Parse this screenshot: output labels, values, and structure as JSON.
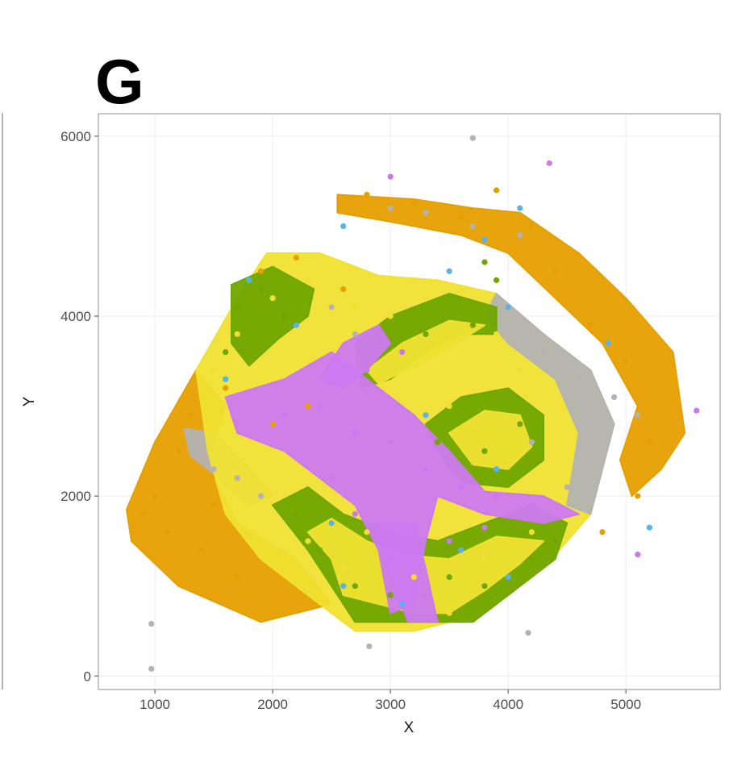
{
  "panel_letter": "G",
  "colors": {
    "orange": "#e69f00",
    "grey": "#b3b3b3",
    "purple": "#cc79f0",
    "green": "#6fa600",
    "yellow": "#f0e130",
    "blue": "#56b4e9",
    "panel_border": "#b3b3b3",
    "grid": "#ececec"
  },
  "chart_data": {
    "type": "scatter",
    "xlabel": "X",
    "ylabel": "Y",
    "xlim": [
      520,
      5800
    ],
    "ylim": [
      -150,
      6250
    ],
    "x_ticks": [
      1000,
      2000,
      3000,
      4000,
      5000
    ],
    "y_ticks": [
      0,
      2000,
      4000,
      6000
    ],
    "x_tick_labels": [
      "1000",
      "2000",
      "3000",
      "4000",
      "5000"
    ],
    "y_tick_labels": [
      "0",
      "2000",
      "4000",
      "6000"
    ],
    "grid": true,
    "legend": "none",
    "series": [
      {
        "color": "orange",
        "points": [
          [
            900,
            1800
          ],
          [
            1000,
            2000
          ],
          [
            1100,
            1600
          ],
          [
            1200,
            2500
          ],
          [
            1300,
            2900
          ],
          [
            1400,
            1400
          ],
          [
            1500,
            1900
          ],
          [
            1700,
            1100
          ],
          [
            1600,
            3200
          ],
          [
            1900,
            4500
          ],
          [
            2200,
            4650
          ],
          [
            2600,
            4300
          ],
          [
            2800,
            5350
          ],
          [
            3200,
            5250
          ],
          [
            3600,
            5100
          ],
          [
            3900,
            5400
          ],
          [
            4200,
            5000
          ],
          [
            4400,
            4500
          ],
          [
            4700,
            3900
          ],
          [
            5000,
            3500
          ],
          [
            5200,
            2600
          ],
          [
            5100,
            2000
          ],
          [
            4800,
            1600
          ],
          [
            2000,
            2800
          ],
          [
            2300,
            3000
          ]
        ]
      },
      {
        "color": "grey",
        "points": [
          [
            1300,
            2600
          ],
          [
            1500,
            2300
          ],
          [
            1700,
            2200
          ],
          [
            1900,
            2000
          ],
          [
            2500,
            4100
          ],
          [
            2700,
            3800
          ],
          [
            3000,
            5200
          ],
          [
            3300,
            5150
          ],
          [
            3700,
            5000
          ],
          [
            4100,
            4900
          ],
          [
            4300,
            3600
          ],
          [
            4600,
            3300
          ],
          [
            4900,
            3100
          ],
          [
            5100,
            2900
          ],
          [
            4500,
            2100
          ],
          [
            4200,
            2600
          ],
          [
            970,
            580
          ],
          [
            970,
            80
          ],
          [
            2820,
            330
          ],
          [
            4170,
            480
          ],
          [
            3700,
            5980
          ]
        ]
      },
      {
        "color": "purple",
        "points": [
          [
            2100,
            2900
          ],
          [
            2400,
            3000
          ],
          [
            2700,
            2700
          ],
          [
            3000,
            2600
          ],
          [
            3300,
            2300
          ],
          [
            3600,
            2100
          ],
          [
            3900,
            2000
          ],
          [
            4200,
            1900
          ],
          [
            2800,
            3400
          ],
          [
            3100,
            3600
          ],
          [
            2500,
            2200
          ],
          [
            2700,
            1800
          ],
          [
            3000,
            1300
          ],
          [
            3300,
            900
          ],
          [
            3500,
            1500
          ],
          [
            3800,
            1650
          ],
          [
            4350,
            5700
          ],
          [
            5600,
            2950
          ],
          [
            5100,
            1350
          ],
          [
            3000,
            5550
          ]
        ]
      },
      {
        "color": "green",
        "points": [
          [
            1700,
            4100
          ],
          [
            1900,
            4300
          ],
          [
            2100,
            4000
          ],
          [
            1600,
            3600
          ],
          [
            2200,
            1800
          ],
          [
            2400,
            1400
          ],
          [
            2700,
            1000
          ],
          [
            3000,
            900
          ],
          [
            3500,
            1100
          ],
          [
            3800,
            1000
          ],
          [
            4200,
            1300
          ],
          [
            4400,
            1500
          ],
          [
            3400,
            2600
          ],
          [
            3800,
            2500
          ],
          [
            4100,
            2800
          ],
          [
            3300,
            3800
          ],
          [
            3700,
            3900
          ],
          [
            3900,
            4400
          ],
          [
            3800,
            4600
          ]
        ]
      },
      {
        "color": "yellow",
        "points": [
          [
            1500,
            3400
          ],
          [
            1700,
            3800
          ],
          [
            2000,
            4200
          ],
          [
            2300,
            4400
          ],
          [
            2700,
            4100
          ],
          [
            3000,
            4000
          ],
          [
            3300,
            4200
          ],
          [
            3600,
            4300
          ],
          [
            3900,
            3800
          ],
          [
            4100,
            3400
          ],
          [
            3500,
            3000
          ],
          [
            3700,
            2800
          ],
          [
            4000,
            2400
          ],
          [
            2300,
            1500
          ],
          [
            2600,
            1200
          ],
          [
            2800,
            1600
          ],
          [
            3200,
            1100
          ],
          [
            3500,
            700
          ],
          [
            3800,
            1300
          ],
          [
            4200,
            1600
          ]
        ]
      },
      {
        "color": "blue",
        "points": [
          [
            1600,
            3300
          ],
          [
            1800,
            4400
          ],
          [
            2200,
            3900
          ],
          [
            2500,
            1700
          ],
          [
            2600,
            1000
          ],
          [
            3100,
            800
          ],
          [
            3600,
            1400
          ],
          [
            4000,
            1100
          ],
          [
            3300,
            2900
          ],
          [
            3900,
            2300
          ],
          [
            4000,
            4100
          ],
          [
            3500,
            4500
          ],
          [
            2600,
            5000
          ],
          [
            3800,
            4850
          ],
          [
            4850,
            3700
          ],
          [
            5200,
            1650
          ],
          [
            4100,
            5200
          ]
        ]
      }
    ],
    "regions": [
      {
        "name": "orange-left",
        "color": "orange",
        "poly": [
          [
            760,
            1850
          ],
          [
            1000,
            2600
          ],
          [
            1350,
            3400
          ],
          [
            1600,
            3000
          ],
          [
            1450,
            2350
          ],
          [
            1700,
            1700
          ],
          [
            2200,
            1300
          ],
          [
            2500,
            800
          ],
          [
            1900,
            600
          ],
          [
            1200,
            1000
          ],
          [
            800,
            1500
          ]
        ]
      },
      {
        "name": "grey-streak",
        "color": "grey",
        "poly": [
          [
            1250,
            2750
          ],
          [
            1500,
            2700
          ],
          [
            1800,
            2300
          ],
          [
            2000,
            2000
          ],
          [
            1800,
            1900
          ],
          [
            1550,
            2200
          ],
          [
            1300,
            2450
          ]
        ]
      },
      {
        "name": "top-band",
        "color": "orange",
        "poly": [
          [
            2550,
            5350
          ],
          [
            3200,
            5300
          ],
          [
            3700,
            5200
          ],
          [
            4100,
            5150
          ],
          [
            4600,
            4700
          ],
          [
            5000,
            4200
          ],
          [
            5400,
            3600
          ],
          [
            5500,
            2700
          ],
          [
            5300,
            2300
          ],
          [
            5050,
            2000
          ],
          [
            4950,
            2400
          ],
          [
            5100,
            3000
          ],
          [
            4800,
            3700
          ],
          [
            4400,
            4200
          ],
          [
            4000,
            4700
          ],
          [
            3600,
            4900
          ],
          [
            3000,
            5050
          ],
          [
            2550,
            5150
          ]
        ]
      },
      {
        "name": "cortex-main",
        "color": "yellow",
        "poly": [
          [
            1350,
            3400
          ],
          [
            1700,
            4200
          ],
          [
            1950,
            4700
          ],
          [
            2400,
            4700
          ],
          [
            2900,
            4450
          ],
          [
            3400,
            4400
          ],
          [
            3900,
            4250
          ],
          [
            4300,
            3800
          ],
          [
            4700,
            3400
          ],
          [
            4900,
            2800
          ],
          [
            4700,
            1800
          ],
          [
            4300,
            1200
          ],
          [
            3800,
            700
          ],
          [
            3200,
            500
          ],
          [
            2700,
            500
          ],
          [
            2300,
            900
          ],
          [
            1900,
            1300
          ],
          [
            1600,
            1800
          ],
          [
            1450,
            2500
          ]
        ]
      },
      {
        "name": "grey-rim",
        "color": "grey",
        "poly": [
          [
            3900,
            4250
          ],
          [
            4300,
            3800
          ],
          [
            4700,
            3400
          ],
          [
            4900,
            2800
          ],
          [
            4700,
            1800
          ],
          [
            4500,
            1900
          ],
          [
            4600,
            2700
          ],
          [
            4400,
            3300
          ],
          [
            4000,
            3700
          ],
          [
            3800,
            4000
          ]
        ]
      },
      {
        "name": "green-top-left",
        "color": "green",
        "poly": [
          [
            1650,
            4350
          ],
          [
            2000,
            4550
          ],
          [
            2350,
            4300
          ],
          [
            2300,
            4000
          ],
          [
            2050,
            3750
          ],
          [
            1800,
            3450
          ],
          [
            1650,
            3700
          ]
        ]
      },
      {
        "name": "green-top-mid",
        "color": "green",
        "poly": [
          [
            2700,
            3700
          ],
          [
            3000,
            4000
          ],
          [
            3500,
            4250
          ],
          [
            3900,
            4100
          ],
          [
            3900,
            3800
          ],
          [
            3600,
            3800
          ],
          [
            3300,
            3600
          ],
          [
            3000,
            3300
          ],
          [
            2750,
            3200
          ]
        ]
      },
      {
        "name": "green-right-lobe",
        "color": "green",
        "poly": [
          [
            3300,
            2800
          ],
          [
            3600,
            3100
          ],
          [
            4000,
            3200
          ],
          [
            4300,
            2900
          ],
          [
            4300,
            2400
          ],
          [
            4000,
            2100
          ],
          [
            3600,
            2150
          ],
          [
            3400,
            2500
          ]
        ]
      },
      {
        "name": "green-lower",
        "color": "green",
        "poly": [
          [
            2000,
            1900
          ],
          [
            2300,
            1400
          ],
          [
            2500,
            1000
          ],
          [
            2700,
            600
          ],
          [
            3300,
            600
          ],
          [
            3700,
            600
          ],
          [
            4000,
            900
          ],
          [
            4400,
            1300
          ],
          [
            4500,
            1700
          ],
          [
            4200,
            1900
          ],
          [
            3800,
            1700
          ],
          [
            3400,
            1500
          ],
          [
            3000,
            1600
          ],
          [
            2600,
            1800
          ],
          [
            2300,
            2100
          ]
        ]
      },
      {
        "name": "yellow-lower-fingers",
        "color": "yellow",
        "poly": [
          [
            2300,
            1600
          ],
          [
            2500,
            1300
          ],
          [
            2600,
            900
          ],
          [
            2900,
            800
          ],
          [
            3200,
            700
          ],
          [
            3500,
            700
          ],
          [
            3800,
            950
          ],
          [
            4100,
            1250
          ],
          [
            4300,
            1500
          ],
          [
            3900,
            1550
          ],
          [
            3500,
            1300
          ],
          [
            3100,
            1350
          ],
          [
            2800,
            1500
          ],
          [
            2500,
            1750
          ]
        ]
      },
      {
        "name": "yellow-right-inner",
        "color": "yellow",
        "poly": [
          [
            3500,
            2700
          ],
          [
            3800,
            2950
          ],
          [
            4100,
            2900
          ],
          [
            4200,
            2550
          ],
          [
            4000,
            2300
          ],
          [
            3700,
            2350
          ]
        ]
      },
      {
        "name": "yellow-top-inner",
        "color": "yellow",
        "poly": [
          [
            2800,
            3400
          ],
          [
            3100,
            3700
          ],
          [
            3500,
            3950
          ],
          [
            3800,
            3900
          ],
          [
            3500,
            3650
          ],
          [
            3200,
            3450
          ],
          [
            2900,
            3250
          ]
        ]
      },
      {
        "name": "purple-core",
        "color": "purple",
        "poly": [
          [
            1600,
            3100
          ],
          [
            2100,
            3300
          ],
          [
            2500,
            3600
          ],
          [
            2800,
            3300
          ],
          [
            3200,
            2900
          ],
          [
            3500,
            2500
          ],
          [
            3800,
            2050
          ],
          [
            4300,
            2000
          ],
          [
            4600,
            1800
          ],
          [
            4300,
            1700
          ],
          [
            3800,
            1800
          ],
          [
            3400,
            2000
          ],
          [
            3300,
            1500
          ],
          [
            3200,
            800
          ],
          [
            3000,
            700
          ],
          [
            2900,
            1400
          ],
          [
            2700,
            1900
          ],
          [
            2400,
            2200
          ],
          [
            2100,
            2500
          ],
          [
            1700,
            2700
          ]
        ]
      },
      {
        "name": "purple-arm-up",
        "color": "purple",
        "poly": [
          [
            2400,
            3300
          ],
          [
            2600,
            3700
          ],
          [
            2900,
            3900
          ],
          [
            3000,
            3700
          ],
          [
            2800,
            3400
          ],
          [
            2600,
            3200
          ]
        ]
      },
      {
        "name": "purple-arm-down",
        "color": "purple",
        "poly": [
          [
            2850,
            1700
          ],
          [
            3000,
            1100
          ],
          [
            3150,
            600
          ],
          [
            3400,
            600
          ],
          [
            3300,
            1200
          ],
          [
            3200,
            1700
          ]
        ]
      }
    ]
  }
}
